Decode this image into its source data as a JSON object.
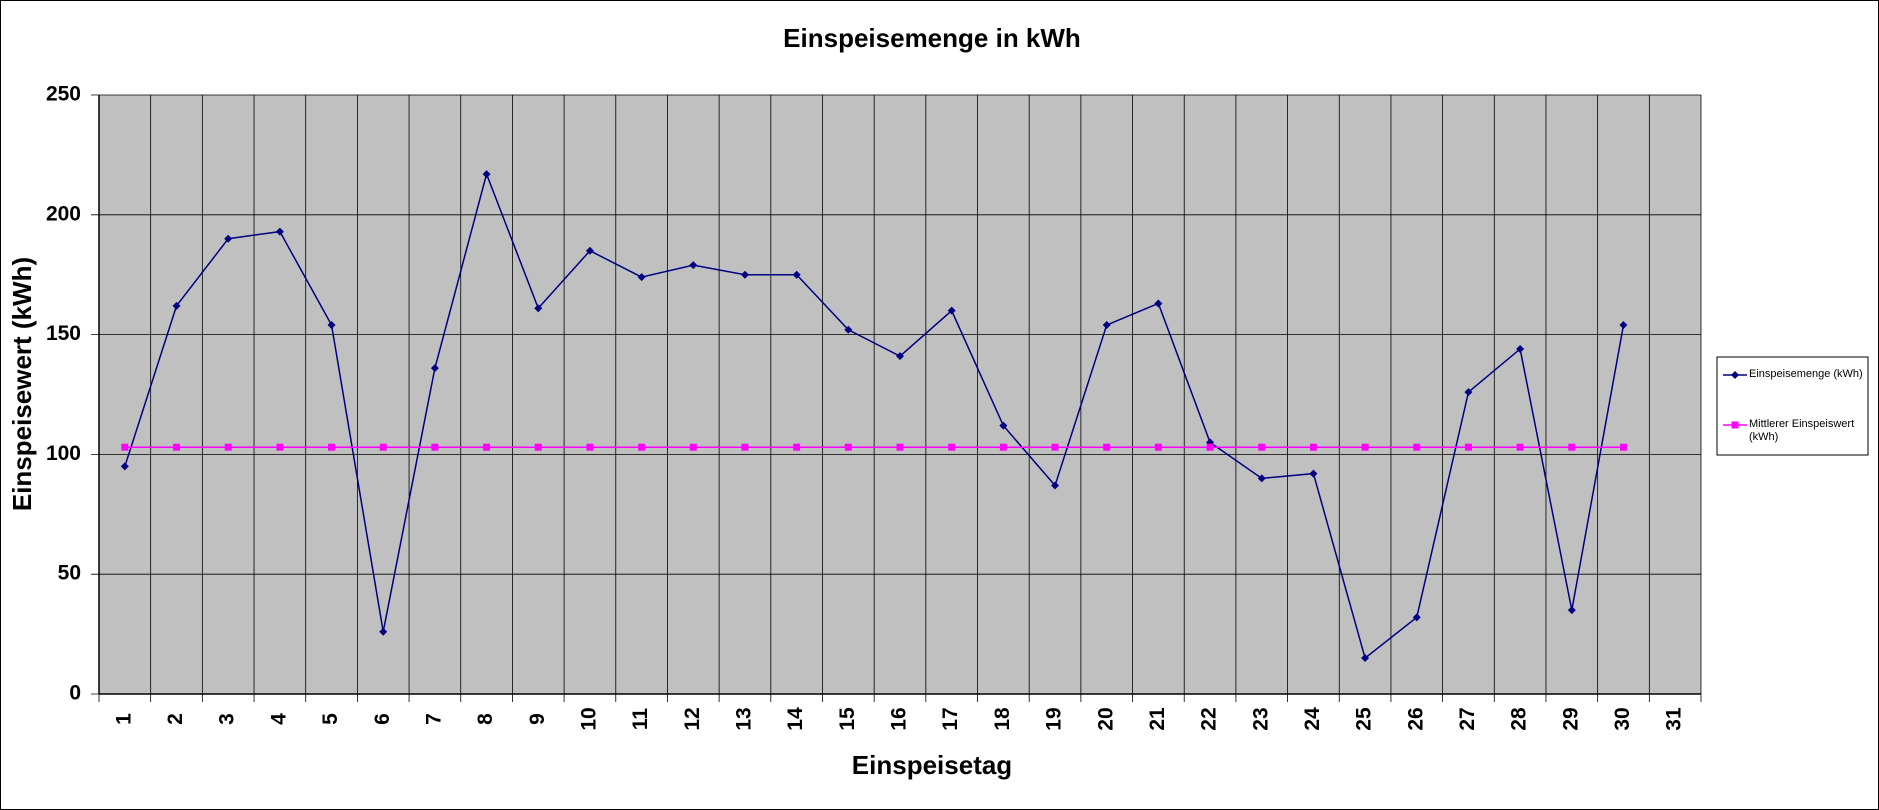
{
  "chart_data": {
    "type": "line",
    "title": "Einspeisemenge in kWh",
    "x_label": "Einspeisetag",
    "y_label": "Einspeisewert  (kWh)",
    "categories": [
      "1",
      "2",
      "3",
      "4",
      "5",
      "6",
      "7",
      "8",
      "9",
      "10",
      "11",
      "12",
      "13",
      "14",
      "15",
      "16",
      "17",
      "18",
      "19",
      "20",
      "21",
      "22",
      "23",
      "24",
      "25",
      "26",
      "27",
      "28",
      "29",
      "30",
      "31"
    ],
    "series": [
      {
        "name": "Einspeisemenge (kWh)",
        "color": "#000080",
        "marker": "diamond",
        "values": [
          95,
          162,
          190,
          193,
          154,
          26,
          136,
          217,
          161,
          185,
          174,
          179,
          175,
          175,
          152,
          141,
          160,
          112,
          87,
          154,
          163,
          105,
          90,
          92,
          15,
          32,
          126,
          144,
          35,
          154,
          null
        ]
      },
      {
        "name": "Mittlerer Einspeiswert (kWh)",
        "color": "#ff00ff",
        "marker": "square",
        "values": [
          103,
          103,
          103,
          103,
          103,
          103,
          103,
          103,
          103,
          103,
          103,
          103,
          103,
          103,
          103,
          103,
          103,
          103,
          103,
          103,
          103,
          103,
          103,
          103,
          103,
          103,
          103,
          103,
          103,
          103,
          null
        ]
      }
    ],
    "ylim": [
      0,
      250
    ],
    "yticks": [
      0,
      50,
      100,
      150,
      200,
      250
    ],
    "grid": true,
    "legend": "right"
  }
}
